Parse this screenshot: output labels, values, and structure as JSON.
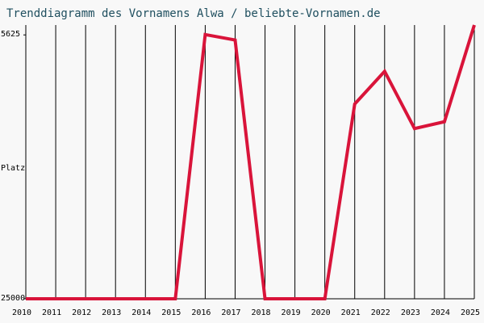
{
  "chart_data": {
    "type": "line",
    "title": "Trenddiagramm des Vornamens Alwa / beliebte-Vornamen.de",
    "y_label": "Platz",
    "categories": [
      "2010",
      "2011",
      "2012",
      "2013",
      "2014",
      "2015",
      "2016",
      "2017",
      "2018",
      "2019",
      "2020",
      "2021",
      "2022",
      "2023",
      "2024",
      "2025"
    ],
    "series": [
      {
        "name": "Alwa",
        "color": "#d9143a",
        "values": [
          25000,
          25000,
          25000,
          25000,
          25000,
          25000,
          5600,
          6000,
          25000,
          25000,
          25000,
          10700,
          8300,
          12500,
          12000,
          4900
        ]
      }
    ],
    "ylim": [
      25000,
      4900
    ],
    "yticks": [
      5625,
      25000
    ],
    "grid": true
  }
}
